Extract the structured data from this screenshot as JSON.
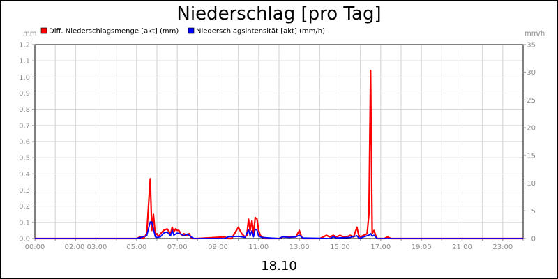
{
  "chart_data": {
    "type": "line",
    "title": "Niederschlag [pro Tag]",
    "xlabel": "18.10",
    "x_tick_labels": [
      "00:00",
      "02:00 03:00",
      "05:00",
      "07:00",
      "09:00",
      "11:00",
      "13:00",
      "15:00",
      "17:00",
      "19:00",
      "21:00",
      "23:00"
    ],
    "xlim": [
      0,
      24
    ],
    "y_left": {
      "unit": "mm",
      "ylim": [
        0,
        1.2
      ],
      "ticks": [
        "0.0",
        "0.1",
        "0.2",
        "0.3",
        "0.4",
        "0.5",
        "0.6",
        "0.7",
        "0.8",
        "0.9",
        "1.0",
        "1.1",
        "1.2"
      ]
    },
    "y_right": {
      "unit": "mm/h",
      "ylim": [
        0,
        35
      ],
      "ticks": [
        "0",
        "5",
        "10",
        "15",
        "20",
        "25",
        "30",
        "35"
      ]
    },
    "grid": true,
    "legend_position": "top-left",
    "series": [
      {
        "name": "Diff. Niederschlagsmenge [akt] (mm)",
        "axis": "left",
        "color": "#ff0000",
        "x": [
          0,
          5.0,
          5.17,
          5.33,
          5.5,
          5.67,
          5.75,
          5.83,
          5.92,
          6.0,
          6.08,
          6.17,
          6.33,
          6.5,
          6.67,
          6.75,
          6.83,
          6.92,
          7.0,
          7.08,
          7.17,
          7.25,
          7.33,
          7.42,
          7.5,
          7.58,
          7.67,
          7.75,
          7.83,
          8.0,
          9.33,
          9.5,
          9.67,
          10.0,
          10.17,
          10.25,
          10.33,
          10.42,
          10.5,
          10.58,
          10.67,
          10.75,
          10.83,
          10.92,
          11.0,
          11.08,
          11.17,
          11.33,
          12.0,
          12.17,
          12.33,
          12.5,
          12.67,
          12.83,
          13.0,
          13.08,
          13.17,
          13.33,
          14.0,
          14.17,
          14.33,
          14.5,
          14.67,
          14.83,
          15.0,
          15.17,
          15.33,
          15.5,
          15.67,
          15.83,
          15.92,
          16.0,
          16.17,
          16.33,
          16.42,
          16.5,
          16.58,
          16.67,
          16.75,
          16.83,
          17.0,
          17.17,
          17.33,
          17.5,
          17.67,
          24
        ],
        "values": [
          0,
          0,
          0.01,
          0,
          0.03,
          0.37,
          0.05,
          0.15,
          0.02,
          0.03,
          0.01,
          0.03,
          0.05,
          0.06,
          0.03,
          0.07,
          0.04,
          0.06,
          0.05,
          0.05,
          0.03,
          0.02,
          0.03,
          0.02,
          0.02,
          0.03,
          0.01,
          0,
          0,
          0,
          0.01,
          0,
          0,
          0.07,
          0.03,
          0.02,
          0.01,
          0.02,
          0.12,
          0.05,
          0.11,
          0.03,
          0.13,
          0.12,
          0.05,
          0.02,
          0.01,
          0,
          0,
          0.01,
          0.01,
          0.01,
          0.01,
          0.01,
          0.05,
          0.02,
          0,
          0,
          0,
          0.01,
          0.02,
          0.01,
          0.02,
          0.01,
          0.02,
          0.01,
          0.01,
          0.02,
          0.01,
          0.07,
          0.02,
          0.01,
          0.02,
          0.03,
          0.15,
          1.04,
          0.03,
          0.05,
          0.02,
          0,
          0,
          0,
          0.01,
          0,
          0,
          0
        ]
      },
      {
        "name": "Niederschlagsintensität [akt] (mm/h)",
        "axis": "right",
        "color": "#0000ff",
        "x": [
          0,
          5.0,
          5.5,
          5.67,
          5.75,
          5.83,
          5.92,
          6.0,
          6.17,
          6.33,
          6.5,
          6.67,
          6.75,
          6.83,
          7.0,
          7.17,
          7.33,
          7.5,
          7.67,
          7.83,
          9.33,
          9.5,
          10.0,
          10.33,
          10.5,
          10.58,
          10.67,
          10.75,
          10.83,
          10.92,
          11.0,
          11.17,
          12.0,
          12.17,
          12.5,
          12.83,
          13.0,
          13.17,
          14.5,
          14.67,
          14.83,
          15.5,
          15.83,
          15.92,
          16.0,
          16.17,
          16.33,
          16.42,
          16.5,
          16.58,
          16.67,
          16.83,
          24
        ],
        "values": [
          0,
          0,
          0.5,
          3.0,
          3.0,
          1.7,
          0.3,
          0.2,
          0.3,
          1.0,
          1.2,
          0.5,
          1.5,
          0.6,
          1.0,
          0.8,
          0.5,
          0.8,
          0.3,
          0,
          0,
          0.3,
          0.4,
          0.2,
          1.6,
          0.5,
          1.4,
          0.3,
          1.7,
          1.5,
          0.4,
          0.2,
          0,
          0.3,
          0.2,
          0.3,
          0.6,
          0.1,
          0,
          0.3,
          0.1,
          0.2,
          0.5,
          0.1,
          0.1,
          0.3,
          0.5,
          0.6,
          0.9,
          0.4,
          0.6,
          0,
          0
        ]
      }
    ]
  }
}
